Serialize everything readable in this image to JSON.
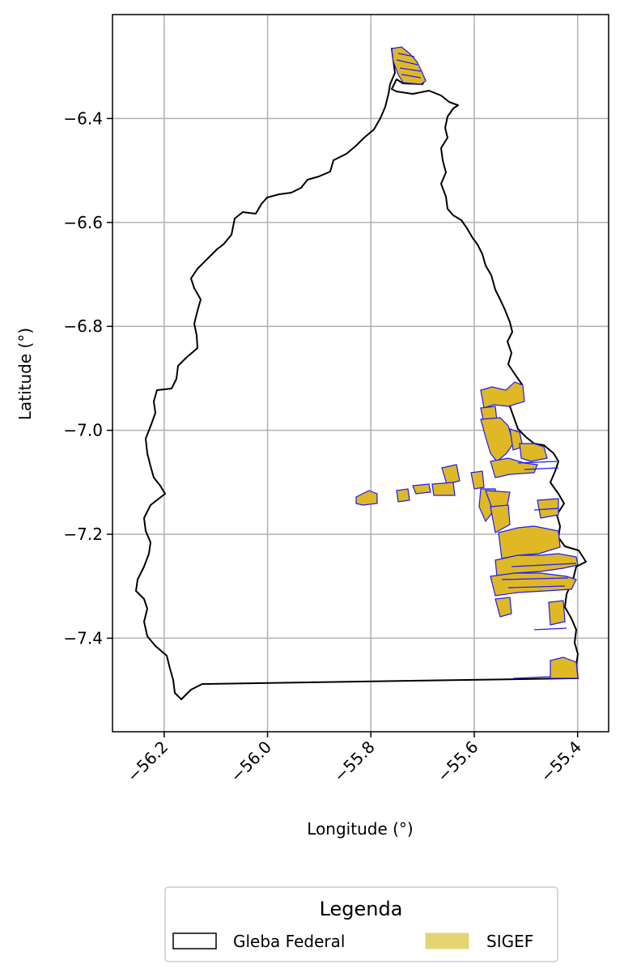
{
  "chart_data": {
    "type": "map",
    "xlabel": "Longitude (°)",
    "ylabel": "Latitude (°)",
    "xlim": [
      -56.3,
      -55.34
    ],
    "ylim": [
      -7.58,
      -6.2
    ],
    "grid": true,
    "x_ticks": [
      -56.2,
      -56.0,
      -55.8,
      -55.6,
      -55.4
    ],
    "y_ticks": [
      -6.4,
      -6.6,
      -6.8,
      -7.0,
      -7.2,
      -7.4
    ],
    "x_tick_labels": [
      "−56.2",
      "−56.0",
      "−55.8",
      "−55.6",
      "−55.4"
    ],
    "y_tick_labels": [
      "−6.4",
      "−6.6",
      "−6.8",
      "−7.0",
      "−7.2",
      "−7.4"
    ],
    "x_tick_rotation": 45,
    "legend": {
      "title": "Legenda",
      "placement": "below plot",
      "entries": [
        {
          "label": "Gleba Federal",
          "style": "outline",
          "color": "#000000"
        },
        {
          "label": "SIGEF",
          "style": "fill",
          "color": "#e6d474"
        }
      ]
    },
    "colors": {
      "boundary": "#000000",
      "sigef_fill": "#dfb825",
      "sigef_edge": "#1a1aff",
      "grid": "#b0b0b0"
    }
  }
}
